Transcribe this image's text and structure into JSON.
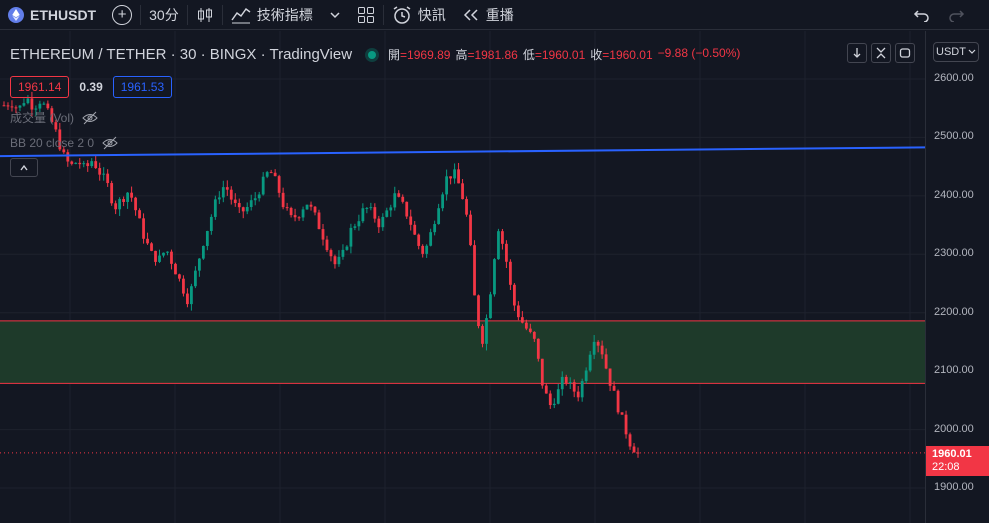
{
  "toolbar": {
    "symbol": "ETHUSDT",
    "interval": "30分",
    "indicators_label": "技術指標",
    "quick_label": "快訊",
    "replay_label": "重播"
  },
  "legend": {
    "title": "ETHEREUM / TETHER · 30 · BINGX · TradingView",
    "open_key": "開",
    "open": "=1969.89",
    "high_key": "高",
    "high": "=1981.86",
    "low_key": "低",
    "low": "=1960.01",
    "close_key": "收",
    "close": "=1960.01",
    "change": "−9.88 (−0.50%)"
  },
  "order": {
    "sell": "1961.14",
    "spread": "0.39",
    "buy": "1961.53"
  },
  "indicators": {
    "volume": "成交量 (Vol)",
    "bb": "BB 20 close 2 0"
  },
  "currency": "USDT",
  "price_axis": {
    "ticks": [
      "2600.00",
      "2500.00",
      "2400.00",
      "2300.00",
      "2200.00",
      "2100.00",
      "2000.00",
      "1900.00"
    ],
    "current_price": "1960.01",
    "countdown": "22:08"
  },
  "colors": {
    "up": "#089981",
    "down": "#f23645",
    "trendline": "#2962ff",
    "zone": "#1e3a2a"
  },
  "chart_data": {
    "type": "candlestick",
    "symbol": "ETHEREUM / TETHER",
    "interval": "30",
    "ylim": [
      1880,
      2620
    ],
    "last_close": 1960.01,
    "trendline": {
      "start": 2468,
      "end": 2483
    },
    "zone": {
      "top": 2186,
      "bottom": 2079
    },
    "close_path": [
      2555,
      2560,
      2548,
      2570,
      2552,
      2565,
      2540,
      2510,
      2470,
      2450,
      2460,
      2445,
      2462,
      2440,
      2420,
      2380,
      2395,
      2410,
      2370,
      2330,
      2300,
      2290,
      2310,
      2280,
      2250,
      2220,
      2270,
      2320,
      2360,
      2400,
      2420,
      2390,
      2370,
      2380,
      2395,
      2420,
      2445,
      2420,
      2380,
      2360,
      2370,
      2390,
      2370,
      2340,
      2310,
      2280,
      2300,
      2340,
      2360,
      2380,
      2370,
      2350,
      2375,
      2400,
      2385,
      2360,
      2320,
      2300,
      2340,
      2390,
      2430,
      2440,
      2410,
      2350,
      2200,
      2150,
      2240,
      2350,
      2300,
      2220,
      2190,
      2170,
      2150,
      2080,
      2040,
      2060,
      2090,
      2070,
      2060,
      2110,
      2160,
      2140,
      2090,
      2050,
      2010,
      1975,
      1960
    ]
  }
}
